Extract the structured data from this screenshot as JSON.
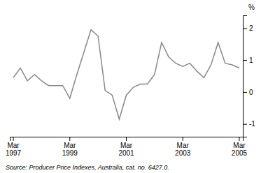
{
  "chart_data": {
    "type": "line",
    "categories": [
      "Mar\n1997",
      null,
      null,
      null,
      null,
      null,
      null,
      null,
      "Mar\n1999",
      null,
      null,
      null,
      null,
      null,
      null,
      null,
      "Mar\n2001",
      null,
      null,
      null,
      null,
      null,
      null,
      null,
      "Mar\n2003",
      null,
      null,
      null,
      null,
      null,
      null,
      null,
      "Mar\n2005"
    ],
    "values": [
      0.45,
      0.75,
      0.35,
      0.55,
      0.35,
      0.2,
      0.2,
      0.2,
      -0.2,
      0.55,
      1.25,
      1.95,
      1.75,
      0.05,
      -0.1,
      -0.85,
      -0.1,
      0.15,
      0.25,
      0.25,
      0.55,
      1.55,
      1.1,
      0.9,
      0.8,
      0.9,
      0.65,
      0.45,
      0.85,
      1.55,
      0.9,
      0.85,
      0.75
    ],
    "color": "#888888",
    "ylabel": "%",
    "source": "Source: Producer Price Indexes, Australia, cat. no. 6427.0.",
    "ylim": [
      -1.4,
      2.4
    ],
    "yticks": [
      -1,
      0,
      1,
      2
    ],
    "grid": false
  }
}
